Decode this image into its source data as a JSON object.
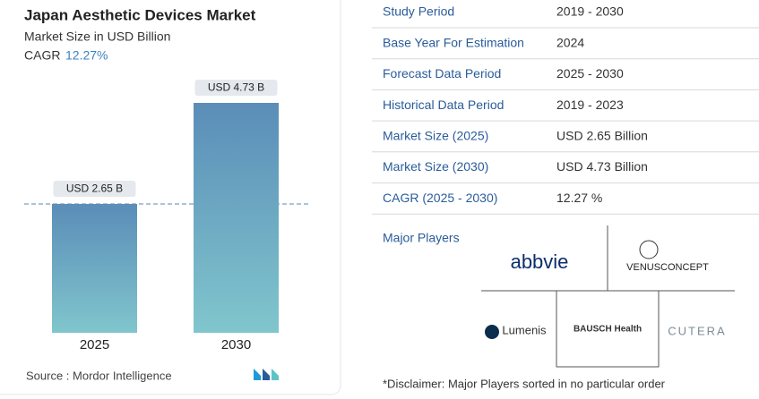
{
  "chart_data": {
    "type": "bar",
    "title": "Japan Aesthetic Devices Market",
    "subtitle": "Market Size in USD Billion",
    "cagr_label": "CAGR",
    "cagr_value": "12.27%",
    "categories": [
      "2025",
      "2030"
    ],
    "values": [
      2.65,
      4.73
    ],
    "value_labels": [
      "USD 2.65 B",
      "USD 4.73 B"
    ],
    "color": "#5b8db8",
    "source": "Source :  Mordor Intelligence"
  },
  "summary_table": {
    "rows": [
      [
        "Study Period",
        "2019 - 2030"
      ],
      [
        "Base Year For Estimation",
        "2024"
      ],
      [
        "Forecast Data Period",
        "2025 - 2030"
      ],
      [
        "Historical Data Period",
        "2019 - 2023"
      ],
      [
        "Market Size (2025)",
        "USD 2.65 Billion"
      ],
      [
        "Market Size (2030)",
        "USD 4.73 Billion"
      ],
      [
        "CAGR (2025 - 2030)",
        "12.27 %"
      ]
    ]
  },
  "major_players": {
    "label": "Major Players",
    "players": [
      "abbvie",
      "VENUSCONCEPT",
      "Lumenis",
      "BAUSCH Health",
      "CUTERA"
    ]
  },
  "disclaimer": "*Disclaimer: Major Players sorted in no particular order"
}
